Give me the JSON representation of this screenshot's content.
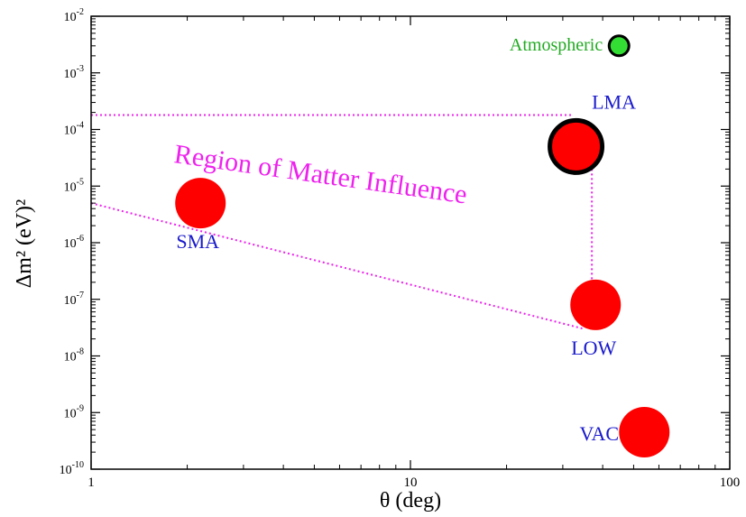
{
  "chart_data": {
    "type": "scatter",
    "xlabel": "θ (deg)",
    "ylabel": "Δm² (eV)²",
    "xscale": "log",
    "yscale": "log",
    "xlim": [
      1,
      100
    ],
    "ylim": [
      1e-10,
      0.01
    ],
    "grid": false,
    "legend": "none",
    "x_ticks": [
      {
        "value": 1,
        "label": "1"
      },
      {
        "value": 10,
        "label": "10"
      },
      {
        "value": 100,
        "label": "100"
      }
    ],
    "y_ticks": [
      {
        "value": 1e-10,
        "base": "10",
        "exp": "-10"
      },
      {
        "value": 1e-09,
        "base": "10",
        "exp": "-9"
      },
      {
        "value": 1e-08,
        "base": "10",
        "exp": "-8"
      },
      {
        "value": 1e-07,
        "base": "10",
        "exp": "-7"
      },
      {
        "value": 1e-06,
        "base": "10",
        "exp": "-6"
      },
      {
        "value": 1e-05,
        "base": "10",
        "exp": "-5"
      },
      {
        "value": 0.0001,
        "base": "10",
        "exp": "-4"
      },
      {
        "value": 0.001,
        "base": "10",
        "exp": "-3"
      },
      {
        "value": 0.01,
        "base": "10",
        "exp": "-2"
      }
    ],
    "points": [
      {
        "name": "SMA",
        "label": "SMA",
        "x": 2.2,
        "y": 5e-06,
        "color": "#ff0000",
        "outline": false,
        "label_color": "#1a1acc"
      },
      {
        "name": "LMA",
        "label": "LMA",
        "x": 33,
        "y": 5e-05,
        "color": "#ff0000",
        "outline": true,
        "label_color": "#1a1acc"
      },
      {
        "name": "LOW",
        "label": "LOW",
        "x": 38,
        "y": 8e-08,
        "color": "#ff0000",
        "outline": false,
        "label_color": "#1a1acc"
      },
      {
        "name": "VAC",
        "label": "VAC",
        "x": 54,
        "y": 4.5e-10,
        "color": "#ff0000",
        "outline": false,
        "label_color": "#1a1acc"
      },
      {
        "name": "Atmospheric",
        "label": "Atmospheric",
        "x": 45,
        "y": 0.003,
        "color": "#33dd33",
        "outline": true,
        "label_color": "#22aa22"
      }
    ],
    "annotation": {
      "text": "Region of Matter Influence",
      "color": "#ee22ee"
    },
    "boundary_lines": {
      "color": "#ee22ee",
      "segments": [
        [
          [
            1,
            0.00018
          ],
          [
            32,
            0.00018
          ]
        ],
        [
          [
            37,
            5e-05
          ],
          [
            37,
            8e-08
          ]
        ],
        [
          [
            1,
            5e-06
          ],
          [
            35,
            3e-08
          ]
        ]
      ]
    }
  }
}
